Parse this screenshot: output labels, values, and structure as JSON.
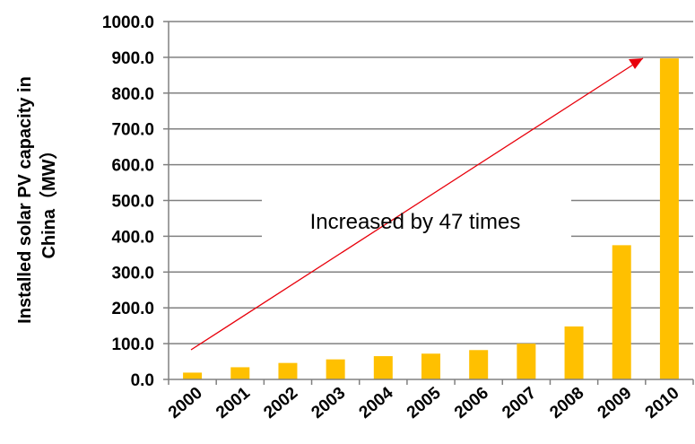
{
  "chart_data": {
    "type": "bar",
    "categories": [
      "2000",
      "2001",
      "2002",
      "2003",
      "2004",
      "2005",
      "2006",
      "2007",
      "2008",
      "2009",
      "2010"
    ],
    "values": [
      19,
      34,
      46,
      56,
      65,
      72,
      82,
      100,
      148,
      375,
      897
    ],
    "ylim": [
      0,
      1000
    ],
    "yticks": [
      "0.0",
      "100.0",
      "200.0",
      "300.0",
      "400.0",
      "500.0",
      "600.0",
      "700.0",
      "800.0",
      "900.0",
      "1000.0"
    ],
    "ylabel_line1": "Installed solar PV capacity in",
    "ylabel_line2": "China（MW）",
    "annotation": "Increased by 47 times",
    "grid": true,
    "colors": {
      "bar": "#FFC000",
      "arrow": "#E8000B",
      "grid": "#808080",
      "axis": "#808080"
    }
  }
}
